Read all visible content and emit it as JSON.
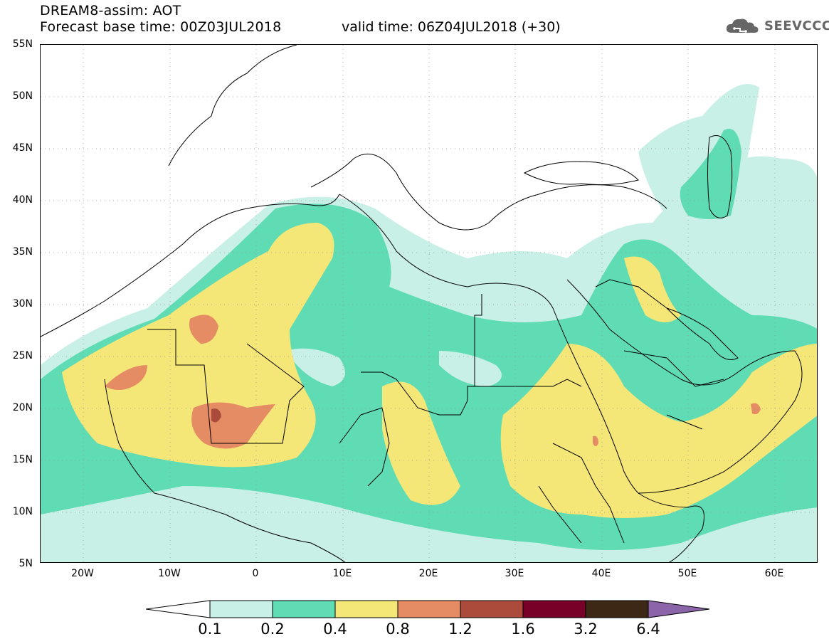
{
  "header": {
    "title": "DREAM8-assim: AOT",
    "forecast": "Forecast base time: 00Z03JUL2018",
    "valid": "valid time: 06Z04JUL2018 (+30)",
    "logo_text": "SEEVCCC"
  },
  "axes": {
    "lat_labels": [
      "55N",
      "50N",
      "45N",
      "40N",
      "35N",
      "30N",
      "25N",
      "20N",
      "15N",
      "10N",
      "5N"
    ],
    "lon_labels": [
      "20W",
      "10W",
      "0",
      "10E",
      "20E",
      "30E",
      "40E",
      "50E",
      "60E"
    ]
  },
  "colorbar": {
    "levels": [
      "0.1",
      "0.2",
      "0.4",
      "0.8",
      "1.2",
      "1.6",
      "3.2",
      "6.4"
    ],
    "colors": [
      "#c8f0e6",
      "#5fdcb4",
      "#f5e678",
      "#e68c64",
      "#aa4b3c",
      "#780028",
      "#3c2814",
      "#8c64aa"
    ]
  },
  "map": {
    "field_colors": {
      "very_light": "#c8f0e6",
      "green": "#5fdcb4",
      "yellow": "#f5e678",
      "orange": "#e68c64",
      "dark_red": "#aa4b3c"
    }
  }
}
